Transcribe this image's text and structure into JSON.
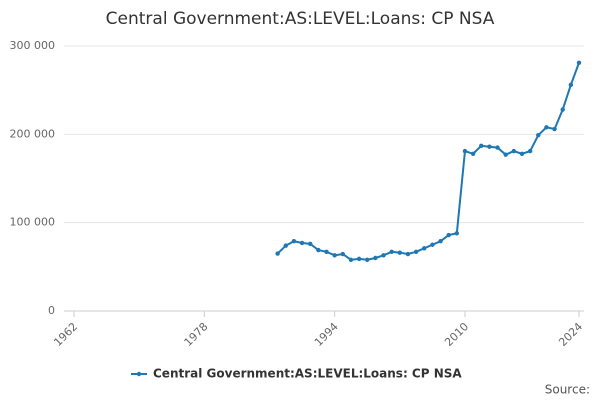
{
  "chart_data": {
    "type": "line",
    "title": "Central Government:AS:LEVEL:Loans: CP NSA",
    "x": [
      1987,
      1988,
      1989,
      1990,
      1991,
      1992,
      1993,
      1994,
      1995,
      1996,
      1997,
      1998,
      1999,
      2000,
      2001,
      2002,
      2003,
      2004,
      2005,
      2006,
      2007,
      2008,
      2009,
      2010,
      2011,
      2012,
      2013,
      2014,
      2015,
      2016,
      2017,
      2018,
      2019,
      2020,
      2021,
      2022,
      2023,
      2024
    ],
    "series": [
      {
        "name": "Central Government:AS:LEVEL:Loans: CP NSA",
        "color": "#1f78b4",
        "values": [
          65000,
          74000,
          79000,
          77000,
          76000,
          69000,
          67000,
          63000,
          64500,
          58000,
          59000,
          58000,
          60000,
          63000,
          67000,
          66000,
          64500,
          67000,
          71000,
          75000,
          79000,
          86000,
          88000,
          181000,
          178000,
          187000,
          186000,
          185000,
          177000,
          181000,
          178000,
          181000,
          199000,
          208000,
          206000,
          228000,
          256000,
          281000
        ]
      }
    ],
    "xlim": [
      1962,
      2024
    ],
    "xticks": [
      1962,
      1978,
      1994,
      2010,
      2024
    ],
    "ylim": [
      0,
      300000
    ],
    "yticks": [
      0,
      {
        "value": 100000,
        "label": "100 000"
      },
      {
        "value": 200000,
        "label": "200 000"
      },
      {
        "value": 300000,
        "label": "300 000"
      }
    ],
    "grid": true,
    "source": "Source:"
  }
}
